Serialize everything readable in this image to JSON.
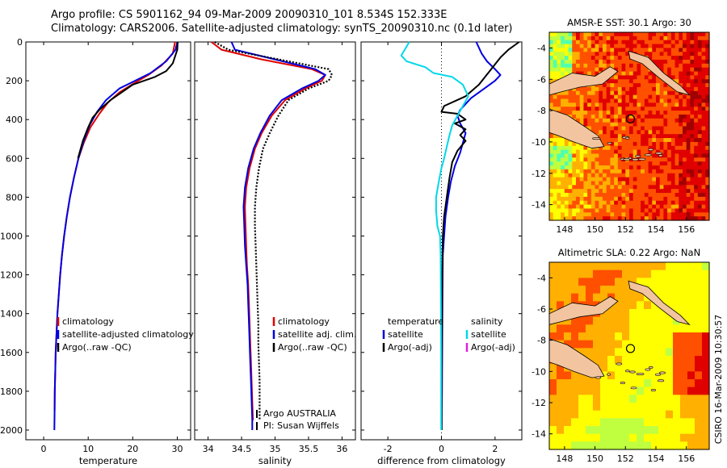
{
  "title": {
    "line1": "Argo profile: CS 5901162_94 09-Mar-2009 20090310_101 8.534S 152.333E",
    "line2": "Climatology: CARS2006. Satellite-adjusted climatology: synTS_20090310.nc (0.1d later)"
  },
  "side_label": "CSIRO 16-Mar-2009 10:30:57",
  "chart_data": [
    {
      "type": "line",
      "id": "temperature",
      "xlabel": "temperature",
      "xlim": [
        -4,
        33
      ],
      "ylim": [
        2050,
        0
      ],
      "y_reversed": true,
      "xticks": [
        0,
        10,
        20,
        30
      ],
      "yticks": [
        0,
        200,
        400,
        600,
        800,
        1000,
        1200,
        1400,
        1600,
        1800,
        2000
      ],
      "series": [
        {
          "name": "climatology",
          "color": "#e00000",
          "points": [
            [
              29.5,
              0
            ],
            [
              29.0,
              60
            ],
            [
              26.5,
              120
            ],
            [
              23.5,
              170
            ],
            [
              20.5,
              210
            ],
            [
              17.0,
              260
            ],
            [
              14.5,
              310
            ],
            [
              12.5,
              370
            ],
            [
              10.5,
              440
            ],
            [
              9.0,
              520
            ],
            [
              7.8,
              600
            ],
            [
              6.8,
              700
            ],
            [
              5.9,
              800
            ],
            [
              5.2,
              900
            ],
            [
              4.6,
              1000
            ],
            [
              4.1,
              1100
            ],
            [
              3.7,
              1200
            ],
            [
              3.4,
              1300
            ],
            [
              3.1,
              1400
            ],
            [
              2.9,
              1500
            ],
            [
              2.7,
              1600
            ],
            [
              2.6,
              1700
            ],
            [
              2.5,
              1800
            ],
            [
              2.45,
              1900
            ]
          ]
        },
        {
          "name": "satellite-adjusted climatology",
          "color": "#0000e0",
          "points": [
            [
              30.0,
              0
            ],
            [
              29.6,
              40
            ],
            [
              27.5,
              100
            ],
            [
              24.0,
              160
            ],
            [
              20.5,
              200
            ],
            [
              17.0,
              240
            ],
            [
              14.0,
              300
            ],
            [
              12.0,
              360
            ],
            [
              10.3,
              430
            ],
            [
              9.0,
              510
            ],
            [
              7.8,
              600
            ],
            [
              6.8,
              700
            ],
            [
              5.9,
              800
            ],
            [
              5.2,
              900
            ],
            [
              4.6,
              1000
            ],
            [
              4.1,
              1100
            ],
            [
              3.7,
              1200
            ],
            [
              3.4,
              1300
            ],
            [
              3.1,
              1400
            ],
            [
              2.9,
              1500
            ],
            [
              2.7,
              1600
            ],
            [
              2.6,
              1700
            ],
            [
              2.5,
              1800
            ],
            [
              2.45,
              1900
            ],
            [
              2.4,
              2000
            ]
          ]
        },
        {
          "name": "Argo(..raw -QC)",
          "color": "#000000",
          "points": [
            [
              30.1,
              0
            ],
            [
              30.0,
              40
            ],
            [
              29.0,
              110
            ],
            [
              27.5,
              150
            ],
            [
              25.0,
              180
            ],
            [
              20.0,
              220
            ],
            [
              17.5,
              260
            ],
            [
              15.0,
              300
            ],
            [
              12.5,
              350
            ],
            [
              11.0,
              390
            ],
            [
              10.0,
              440
            ],
            [
              8.8,
              510
            ],
            [
              7.7,
              600
            ]
          ]
        }
      ],
      "legend": [
        "climatology",
        "satellite-adjusted climatology",
        "Argo(..raw -QC)"
      ],
      "legend_placement": "lower-right"
    },
    {
      "type": "line",
      "id": "salinity",
      "xlabel": "salinity",
      "xlim": [
        33.8,
        36.2
      ],
      "ylim": [
        2050,
        0
      ],
      "y_reversed": true,
      "xticks": [
        34,
        34.5,
        35,
        35.5,
        36
      ],
      "yticks": [
        0,
        200,
        400,
        600,
        800,
        1000,
        1200,
        1400,
        1600,
        1800,
        2000
      ],
      "series": [
        {
          "name": "climatology",
          "color": "#e00000",
          "points": [
            [
              34.05,
              0
            ],
            [
              34.2,
              40
            ],
            [
              34.8,
              90
            ],
            [
              35.55,
              140
            ],
            [
              35.75,
              170
            ],
            [
              35.7,
              200
            ],
            [
              35.45,
              240
            ],
            [
              35.15,
              300
            ],
            [
              34.95,
              380
            ],
            [
              34.8,
              470
            ],
            [
              34.7,
              550
            ],
            [
              34.62,
              650
            ],
            [
              34.57,
              750
            ],
            [
              34.55,
              850
            ],
            [
              34.56,
              950
            ],
            [
              34.57,
              1050
            ],
            [
              34.58,
              1150
            ],
            [
              34.6,
              1250
            ],
            [
              34.61,
              1350
            ],
            [
              34.62,
              1450
            ],
            [
              34.63,
              1550
            ],
            [
              34.64,
              1650
            ],
            [
              34.65,
              1750
            ],
            [
              34.66,
              1850
            ],
            [
              34.67,
              1950
            ]
          ]
        },
        {
          "name": "satellite adj. clim.",
          "color": "#0000e0",
          "points": [
            [
              34.35,
              0
            ],
            [
              34.4,
              40
            ],
            [
              35.0,
              90
            ],
            [
              35.6,
              140
            ],
            [
              35.75,
              170
            ],
            [
              35.65,
              200
            ],
            [
              35.4,
              240
            ],
            [
              35.1,
              300
            ],
            [
              34.92,
              380
            ],
            [
              34.78,
              470
            ],
            [
              34.68,
              550
            ],
            [
              34.6,
              650
            ],
            [
              34.55,
              750
            ],
            [
              34.53,
              850
            ],
            [
              34.54,
              950
            ],
            [
              34.55,
              1050
            ],
            [
              34.57,
              1150
            ],
            [
              34.59,
              1250
            ],
            [
              34.6,
              1350
            ],
            [
              34.61,
              1450
            ],
            [
              34.62,
              1550
            ],
            [
              34.63,
              1650
            ],
            [
              34.64,
              1750
            ],
            [
              34.65,
              1850
            ],
            [
              34.66,
              1950
            ],
            [
              34.66,
              2000
            ]
          ]
        },
        {
          "name": "Argo(..raw -QC)",
          "color": "#000000",
          "dotted": true,
          "points": [
            [
              34.1,
              0
            ],
            [
              34.3,
              40
            ],
            [
              35.2,
              100
            ],
            [
              35.8,
              140
            ],
            [
              35.85,
              170
            ],
            [
              35.8,
              200
            ],
            [
              35.5,
              240
            ],
            [
              35.2,
              300
            ],
            [
              35.05,
              380
            ],
            [
              34.92,
              470
            ],
            [
              34.82,
              550
            ],
            [
              34.76,
              650
            ],
            [
              34.72,
              750
            ],
            [
              34.7,
              850
            ],
            [
              34.7,
              950
            ],
            [
              34.71,
              1050
            ],
            [
              34.72,
              1150
            ],
            [
              34.73,
              1250
            ],
            [
              34.74,
              1350
            ],
            [
              34.75,
              1450
            ],
            [
              34.75,
              1550
            ],
            [
              34.76,
              1650
            ],
            [
              34.77,
              1750
            ],
            [
              34.77,
              1850
            ],
            [
              34.77,
              1950
            ]
          ]
        }
      ],
      "legend": [
        "climatology",
        "satellite adj. clim.",
        "Argo(..raw -QC)"
      ],
      "legend_placement": "lower-right",
      "annotations": [
        "Argo AUSTRALIA",
        "PI: Susan Wijffels"
      ]
    },
    {
      "type": "line",
      "id": "difference",
      "xlabel": "difference from climatology",
      "xlim": [
        -3,
        3
      ],
      "ylim": [
        2050,
        0
      ],
      "y_reversed": true,
      "xticks": [
        -2,
        0,
        2
      ],
      "yticks": [
        0,
        200,
        400,
        600,
        800,
        1000,
        1200,
        1400,
        1600,
        1800,
        2000
      ],
      "zero_line": true,
      "series": [
        {
          "name": "temperature satellite",
          "color": "#0000e0",
          "points": [
            [
              1.3,
              0
            ],
            [
              1.5,
              60
            ],
            [
              1.7,
              100
            ],
            [
              2.0,
              140
            ],
            [
              2.2,
              170
            ],
            [
              2.0,
              200
            ],
            [
              1.6,
              240
            ],
            [
              1.1,
              290
            ],
            [
              0.7,
              350
            ],
            [
              0.6,
              380
            ],
            [
              0.7,
              420
            ],
            [
              0.9,
              470
            ],
            [
              0.8,
              520
            ],
            [
              0.7,
              570
            ],
            [
              0.5,
              640
            ],
            [
              0.35,
              720
            ],
            [
              0.25,
              800
            ],
            [
              0.15,
              900
            ],
            [
              0.1,
              1000
            ],
            [
              0.05,
              1100
            ],
            [
              0.04,
              1300
            ],
            [
              0.03,
              1500
            ],
            [
              0.02,
              1800
            ],
            [
              0.01,
              2000
            ]
          ]
        },
        {
          "name": "temperature Argo(-adj)",
          "color": "#000000",
          "points": [
            [
              2.9,
              0
            ],
            [
              2.5,
              40
            ],
            [
              2.2,
              80
            ],
            [
              1.8,
              150
            ],
            [
              1.4,
              220
            ],
            [
              0.9,
              280
            ],
            [
              0.1,
              330
            ],
            [
              0.0,
              360
            ],
            [
              0.6,
              370
            ],
            [
              0.9,
              400
            ],
            [
              0.5,
              420
            ],
            [
              0.9,
              450
            ],
            [
              0.7,
              480
            ],
            [
              0.9,
              510
            ],
            [
              0.6,
              560
            ],
            [
              0.4,
              620
            ],
            [
              0.3,
              700
            ],
            [
              0.2,
              800
            ],
            [
              0.1,
              900
            ],
            [
              0.05,
              1000
            ],
            [
              0.03,
              1200
            ],
            [
              0.02,
              1500
            ],
            [
              0.01,
              1800
            ],
            [
              0.01,
              2000
            ]
          ]
        },
        {
          "name": "salinity satellite",
          "color": "#00d8e8",
          "points": [
            [
              -1.2,
              0
            ],
            [
              -1.5,
              70
            ],
            [
              -1.3,
              100
            ],
            [
              -0.6,
              130
            ],
            [
              -0.3,
              160
            ],
            [
              0.4,
              180
            ],
            [
              0.8,
              220
            ],
            [
              1.0,
              280
            ],
            [
              0.8,
              330
            ],
            [
              0.6,
              380
            ],
            [
              0.4,
              430
            ],
            [
              0.3,
              480
            ],
            [
              0.2,
              540
            ],
            [
              0.1,
              600
            ],
            [
              0.0,
              650
            ],
            [
              -0.1,
              720
            ],
            [
              -0.2,
              800
            ],
            [
              -0.2,
              870
            ],
            [
              -0.15,
              950
            ],
            [
              -0.05,
              1000
            ],
            [
              -0.03,
              1100
            ],
            [
              -0.02,
              1300
            ],
            [
              -0.01,
              1600
            ],
            [
              -0.01,
              2000
            ]
          ]
        }
      ],
      "legend": [
        "temperature",
        "satellite",
        "Argo(-adj)",
        "salinity",
        "satellite",
        "Argo(-adj)"
      ],
      "legend_colors": [
        "",
        "#0000e0",
        "#000000",
        "",
        "#00d8e8",
        "#e020e0"
      ],
      "legend_placement": "lower-center"
    },
    {
      "type": "heatmap",
      "id": "sst_map",
      "title": "AMSR-E SST: 30.1 Argo: 30",
      "xlim": [
        147,
        157.5
      ],
      "ylim": [
        -15,
        -3
      ],
      "xticks": [
        148,
        150,
        152,
        154,
        156
      ],
      "yticks": [
        -4,
        -6,
        -8,
        -10,
        -12,
        -14
      ],
      "marker": [
        152.33,
        -8.53
      ],
      "colormap": "jet-warm"
    },
    {
      "type": "heatmap",
      "id": "sla_map",
      "title": "Altimetric SLA: 0.22 Argo: NaN",
      "xlim": [
        147,
        157.5
      ],
      "ylim": [
        -15,
        -3
      ],
      "xticks": [
        148,
        150,
        152,
        154,
        156
      ],
      "yticks": [
        -4,
        -6,
        -8,
        -10,
        -12,
        -14
      ],
      "marker": [
        152.33,
        -8.53
      ],
      "colormap": "jet-warm"
    }
  ]
}
